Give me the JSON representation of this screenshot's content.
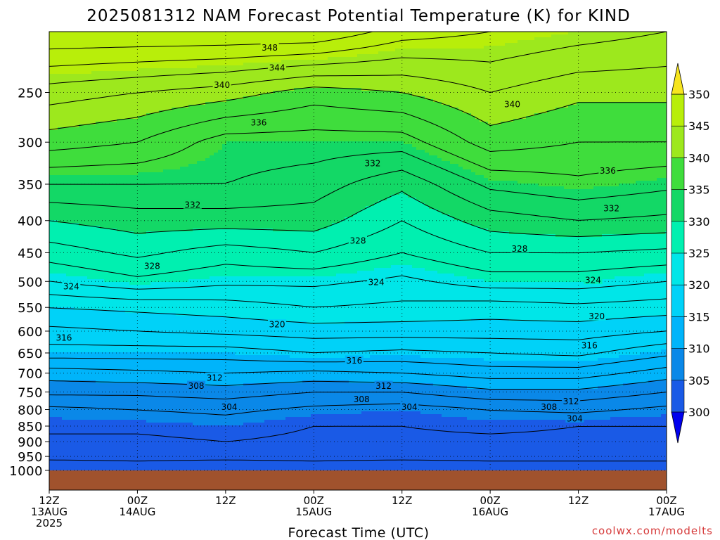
{
  "title": "2025081312 NAM Forecast Potential Temperature (K) for KIND",
  "credit": "coolwx.com/modelts",
  "chart_data": {
    "type": "heatmap",
    "title": "2025081312 NAM Forecast Potential Temperature (K) for KIND",
    "xlabel": "Forecast Time (UTC)",
    "ylabel": "",
    "x_ticks": [
      {
        "hour": 0,
        "lines": [
          "12Z",
          "13AUG",
          "2025"
        ]
      },
      {
        "hour": 12,
        "lines": [
          "00Z",
          "14AUG"
        ]
      },
      {
        "hour": 24,
        "lines": [
          "12Z"
        ]
      },
      {
        "hour": 36,
        "lines": [
          "00Z",
          "15AUG"
        ]
      },
      {
        "hour": 48,
        "lines": [
          "12Z"
        ]
      },
      {
        "hour": 60,
        "lines": [
          "00Z",
          "16AUG"
        ]
      },
      {
        "hour": 72,
        "lines": [
          "12Z"
        ]
      },
      {
        "hour": 84,
        "lines": [
          "00Z",
          "17AUG"
        ]
      }
    ],
    "xlim": [
      0,
      84
    ],
    "y_ticks": [
      "250",
      "300",
      "350",
      "400",
      "450",
      "500",
      "550",
      "600",
      "650",
      "700",
      "750",
      "800",
      "850",
      "900",
      "950",
      "1000"
    ],
    "ylim_hPa": [
      1000,
      200
    ],
    "y_scale": "log-pressure",
    "grid": "dotted",
    "colorbar": {
      "labels": [
        "350",
        "345",
        "340",
        "335",
        "330",
        "325",
        "320",
        "315",
        "310",
        "305",
        "300"
      ],
      "colors": [
        "#f7e51f",
        "#b8ee0a",
        "#9de81d",
        "#3fdd3c",
        "#13d866",
        "#00f0b0",
        "#00e6e8",
        "#00d2f8",
        "#00b4fa",
        "#0a88e8",
        "#1a5ae6",
        "#0000ee"
      ],
      "extend": "both",
      "under_color": "#0000ee",
      "over_color": "#f7e51f"
    },
    "ground_color": "#a0522d",
    "profile_columns": [
      {
        "hour": 0,
        "levels": [
          {
            "p": 1000,
            "theta": 300.5
          },
          {
            "p": 950,
            "theta": 302.5
          },
          {
            "p": 900,
            "theta": 303.5
          },
          {
            "p": 850,
            "theta": 304.5
          },
          {
            "p": 800,
            "theta": 305.5
          },
          {
            "p": 750,
            "theta": 308.5
          },
          {
            "p": 700,
            "theta": 311
          },
          {
            "p": 650,
            "theta": 315
          },
          {
            "p": 600,
            "theta": 317.5
          },
          {
            "p": 550,
            "theta": 320
          },
          {
            "p": 500,
            "theta": 324
          },
          {
            "p": 450,
            "theta": 327
          },
          {
            "p": 400,
            "theta": 330
          },
          {
            "p": 350,
            "theta": 334
          },
          {
            "p": 300,
            "theta": 339
          },
          {
            "p": 250,
            "theta": 343
          },
          {
            "p": 200,
            "theta": 350
          }
        ]
      },
      {
        "hour": 12,
        "levels": [
          {
            "p": 1000,
            "theta": 301
          },
          {
            "p": 950,
            "theta": 302.5
          },
          {
            "p": 900,
            "theta": 303.5
          },
          {
            "p": 850,
            "theta": 304.5
          },
          {
            "p": 800,
            "theta": 306
          },
          {
            "p": 750,
            "theta": 308.5
          },
          {
            "p": 700,
            "theta": 311.5
          },
          {
            "p": 650,
            "theta": 315
          },
          {
            "p": 600,
            "theta": 318
          },
          {
            "p": 550,
            "theta": 320.5
          },
          {
            "p": 500,
            "theta": 325.5
          },
          {
            "p": 450,
            "theta": 328.5
          },
          {
            "p": 400,
            "theta": 331
          },
          {
            "p": 350,
            "theta": 334
          },
          {
            "p": 300,
            "theta": 338
          },
          {
            "p": 250,
            "theta": 342
          },
          {
            "p": 200,
            "theta": 350
          }
        ]
      },
      {
        "hour": 24,
        "levels": [
          {
            "p": 1000,
            "theta": 300.5
          },
          {
            "p": 950,
            "theta": 302.5
          },
          {
            "p": 900,
            "theta": 304
          },
          {
            "p": 850,
            "theta": 305
          },
          {
            "p": 800,
            "theta": 306.5
          },
          {
            "p": 750,
            "theta": 309
          },
          {
            "p": 700,
            "theta": 312
          },
          {
            "p": 650,
            "theta": 315
          },
          {
            "p": 600,
            "theta": 318.5
          },
          {
            "p": 550,
            "theta": 321
          },
          {
            "p": 500,
            "theta": 324.5
          },
          {
            "p": 450,
            "theta": 327
          },
          {
            "p": 400,
            "theta": 331
          },
          {
            "p": 350,
            "theta": 334
          },
          {
            "p": 300,
            "theta": 335
          },
          {
            "p": 250,
            "theta": 341
          },
          {
            "p": 200,
            "theta": 350
          }
        ]
      },
      {
        "hour": 36,
        "levels": [
          {
            "p": 1000,
            "theta": 301
          },
          {
            "p": 950,
            "theta": 302.5
          },
          {
            "p": 900,
            "theta": 303.5
          },
          {
            "p": 850,
            "theta": 304
          },
          {
            "p": 800,
            "theta": 305.5
          },
          {
            "p": 750,
            "theta": 308
          },
          {
            "p": 700,
            "theta": 311.5
          },
          {
            "p": 650,
            "theta": 316
          },
          {
            "p": 600,
            "theta": 319
          },
          {
            "p": 550,
            "theta": 322
          },
          {
            "p": 500,
            "theta": 324.5
          },
          {
            "p": 450,
            "theta": 328
          },
          {
            "p": 400,
            "theta": 331
          },
          {
            "p": 350,
            "theta": 333
          },
          {
            "p": 300,
            "theta": 335
          },
          {
            "p": 250,
            "theta": 339
          },
          {
            "p": 200,
            "theta": 350
          }
        ]
      },
      {
        "hour": 48,
        "levels": [
          {
            "p": 1000,
            "theta": 300.5
          },
          {
            "p": 950,
            "theta": 302.5
          },
          {
            "p": 900,
            "theta": 303.5
          },
          {
            "p": 850,
            "theta": 304
          },
          {
            "p": 800,
            "theta": 305
          },
          {
            "p": 750,
            "theta": 308
          },
          {
            "p": 700,
            "theta": 312
          },
          {
            "p": 650,
            "theta": 315.5
          },
          {
            "p": 600,
            "theta": 319
          },
          {
            "p": 550,
            "theta": 321.5
          },
          {
            "p": 500,
            "theta": 323.5
          },
          {
            "p": 450,
            "theta": 326
          },
          {
            "p": 400,
            "theta": 328
          },
          {
            "p": 350,
            "theta": 330.5
          },
          {
            "p": 300,
            "theta": 335
          },
          {
            "p": 250,
            "theta": 340
          },
          {
            "p": 200,
            "theta": 347
          }
        ]
      },
      {
        "hour": 60,
        "levels": [
          {
            "p": 1000,
            "theta": 301
          },
          {
            "p": 950,
            "theta": 302.5
          },
          {
            "p": 900,
            "theta": 303.5
          },
          {
            "p": 850,
            "theta": 304.5
          },
          {
            "p": 800,
            "theta": 306
          },
          {
            "p": 750,
            "theta": 309.5
          },
          {
            "p": 700,
            "theta": 313
          },
          {
            "p": 650,
            "theta": 316
          },
          {
            "p": 600,
            "theta": 319
          },
          {
            "p": 550,
            "theta": 321
          },
          {
            "p": 500,
            "theta": 325
          },
          {
            "p": 450,
            "theta": 328
          },
          {
            "p": 400,
            "theta": 331
          },
          {
            "p": 350,
            "theta": 334.5
          },
          {
            "p": 300,
            "theta": 339
          },
          {
            "p": 250,
            "theta": 342
          },
          {
            "p": 200,
            "theta": 346
          }
        ]
      },
      {
        "hour": 72,
        "levels": [
          {
            "p": 1000,
            "theta": 301
          },
          {
            "p": 950,
            "theta": 302.5
          },
          {
            "p": 900,
            "theta": 303.5
          },
          {
            "p": 850,
            "theta": 304
          },
          {
            "p": 800,
            "theta": 306.5
          },
          {
            "p": 750,
            "theta": 309.5
          },
          {
            "p": 700,
            "theta": 313
          },
          {
            "p": 650,
            "theta": 316.5
          },
          {
            "p": 600,
            "theta": 319
          },
          {
            "p": 550,
            "theta": 321.5
          },
          {
            "p": 500,
            "theta": 325
          },
          {
            "p": 450,
            "theta": 328
          },
          {
            "p": 400,
            "theta": 332
          },
          {
            "p": 350,
            "theta": 335.5
          },
          {
            "p": 300,
            "theta": 338
          },
          {
            "p": 250,
            "theta": 340.5
          },
          {
            "p": 200,
            "theta": 345
          }
        ]
      },
      {
        "hour": 84,
        "levels": [
          {
            "p": 1000,
            "theta": 301
          },
          {
            "p": 950,
            "theta": 302.5
          },
          {
            "p": 900,
            "theta": 303.5
          },
          {
            "p": 850,
            "theta": 304
          },
          {
            "p": 800,
            "theta": 305.5
          },
          {
            "p": 750,
            "theta": 308
          },
          {
            "p": 700,
            "theta": 311
          },
          {
            "p": 650,
            "theta": 314.5
          },
          {
            "p": 600,
            "theta": 318
          },
          {
            "p": 550,
            "theta": 321
          },
          {
            "p": 500,
            "theta": 324
          },
          {
            "p": 450,
            "theta": 327.5
          },
          {
            "p": 400,
            "theta": 331.5
          },
          {
            "p": 350,
            "theta": 334.5
          },
          {
            "p": 300,
            "theta": 338
          },
          {
            "p": 250,
            "theta": 340.5
          },
          {
            "p": 200,
            "theta": 344
          }
        ]
      }
    ],
    "contour_labels": [
      {
        "text": "348",
        "hour": 30,
        "p": 212
      },
      {
        "text": "344",
        "hour": 31,
        "p": 228
      },
      {
        "text": "340",
        "hour": 23.5,
        "p": 243
      },
      {
        "text": "340",
        "hour": 63,
        "p": 261
      },
      {
        "text": "336",
        "hour": 28.5,
        "p": 279
      },
      {
        "text": "336",
        "hour": 76,
        "p": 333
      },
      {
        "text": "332",
        "hour": 44,
        "p": 324
      },
      {
        "text": "332",
        "hour": 19.5,
        "p": 377
      },
      {
        "text": "332",
        "hour": 76.5,
        "p": 382
      },
      {
        "text": "328",
        "hour": 42,
        "p": 430
      },
      {
        "text": "328",
        "hour": 14,
        "p": 472
      },
      {
        "text": "328",
        "hour": 64,
        "p": 443
      },
      {
        "text": "324",
        "hour": 3,
        "p": 509
      },
      {
        "text": "324",
        "hour": 44.5,
        "p": 501
      },
      {
        "text": "324",
        "hour": 74,
        "p": 497
      },
      {
        "text": "320",
        "hour": 31,
        "p": 585
      },
      {
        "text": "320",
        "hour": 74.5,
        "p": 568
      },
      {
        "text": "316",
        "hour": 2,
        "p": 614
      },
      {
        "text": "316",
        "hour": 41.5,
        "p": 668
      },
      {
        "text": "316",
        "hour": 73.5,
        "p": 632
      },
      {
        "text": "312",
        "hour": 22.5,
        "p": 711
      },
      {
        "text": "312",
        "hour": 45.5,
        "p": 733
      },
      {
        "text": "312",
        "hour": 71,
        "p": 776
      },
      {
        "text": "308",
        "hour": 20,
        "p": 733
      },
      {
        "text": "308",
        "hour": 42.5,
        "p": 770
      },
      {
        "text": "308",
        "hour": 68,
        "p": 792
      },
      {
        "text": "304",
        "hour": 24.5,
        "p": 792
      },
      {
        "text": "304",
        "hour": 49,
        "p": 792
      },
      {
        "text": "304",
        "hour": 71.5,
        "p": 826
      }
    ]
  }
}
